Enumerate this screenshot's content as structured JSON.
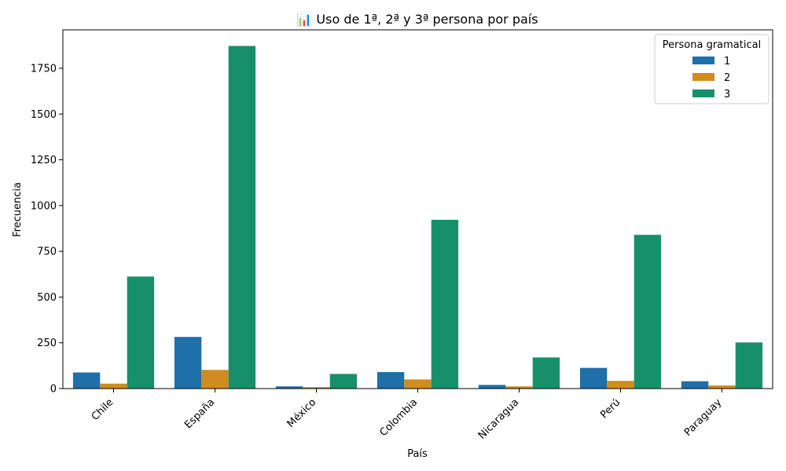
{
  "chart_data": {
    "type": "bar",
    "title": "📊 Uso de 1ª, 2ª y 3ª persona por país",
    "xlabel": "País",
    "ylabel": "Frecuencia",
    "ylim": [
      0,
      1960
    ],
    "yticks": [
      0,
      250,
      500,
      750,
      1000,
      1250,
      1500,
      1750
    ],
    "categories": [
      "Chile",
      "España",
      "México",
      "Colombia",
      "Nicaragua",
      "Perú",
      "Paraguay"
    ],
    "legend_title": "Persona gramatical",
    "legend_position": "top-right",
    "grid": false,
    "series": [
      {
        "name": "1",
        "color": "#1f6fa8",
        "values": [
          88,
          282,
          12,
          90,
          20,
          113,
          40
        ]
      },
      {
        "name": "2",
        "color": "#d08c1f",
        "values": [
          27,
          102,
          8,
          50,
          12,
          42,
          17
        ]
      },
      {
        "name": "3",
        "color": "#17906a",
        "values": [
          612,
          1872,
          80,
          922,
          170,
          840,
          252
        ]
      }
    ]
  }
}
